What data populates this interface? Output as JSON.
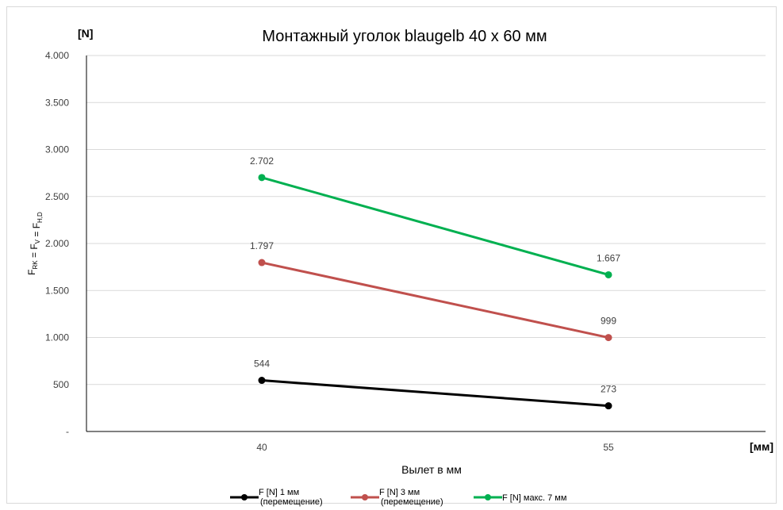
{
  "chart_data": {
    "type": "line",
    "title": "Монтажный уголок blaugelb 40 x 60 мм",
    "y_unit_label": "[N]",
    "x_unit_label": "[мм]",
    "xlabel": "Вылет в мм",
    "ylabel": {
      "main": "F",
      "parts": [
        {
          "text": "F",
          "sub": "RK"
        },
        {
          "text": " = F",
          "sub": "V"
        },
        {
          "text": " = F",
          "sub": "H,D"
        }
      ]
    },
    "categories": [
      "40",
      "55"
    ],
    "ylim": [
      0,
      4000
    ],
    "y_ticks": [
      {
        "value": 0,
        "label": "-"
      },
      {
        "value": 500,
        "label": "500"
      },
      {
        "value": 1000,
        "label": "1.000"
      },
      {
        "value": 1500,
        "label": "1.500"
      },
      {
        "value": 2000,
        "label": "2.000"
      },
      {
        "value": 2500,
        "label": "2.500"
      },
      {
        "value": 3000,
        "label": "3.000"
      },
      {
        "value": 3500,
        "label": "3.500"
      },
      {
        "value": 4000,
        "label": "4.000"
      }
    ],
    "grid": true,
    "legend_position": "bottom",
    "series": [
      {
        "name": "F [N] 1 мм (перемещение)",
        "legend_lines": [
          "F [N] 1 мм",
          "(перемещение)"
        ],
        "color": "#000000",
        "values": [
          544,
          273
        ],
        "labels": [
          "544",
          "273"
        ]
      },
      {
        "name": "F [N] 3 мм (перемещение)",
        "legend_lines": [
          "F [N] 3 мм",
          "(перемещение)"
        ],
        "color": "#c0504d",
        "values": [
          1797,
          999
        ],
        "labels": [
          "1.797",
          "999"
        ]
      },
      {
        "name": "F [N] макс. 7 мм",
        "legend_lines": [
          "F [N] макс. 7 мм"
        ],
        "color": "#00b050",
        "values": [
          2702,
          1667
        ],
        "labels": [
          "2.702",
          "1.667"
        ]
      }
    ]
  }
}
